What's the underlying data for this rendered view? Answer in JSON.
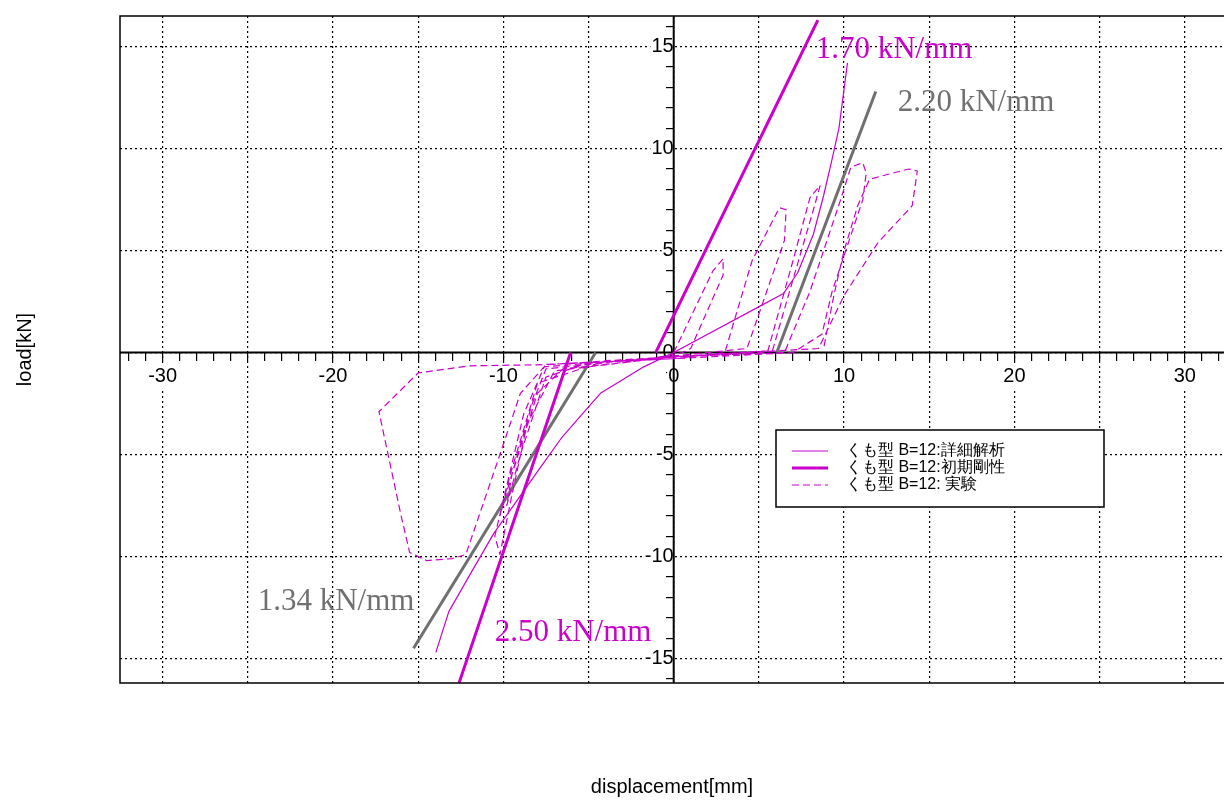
{
  "chart_data": {
    "type": "line",
    "xlabel": "displacement[mm]",
    "ylabel": "load[kN]",
    "xlim": [
      -32.5,
      32.3
    ],
    "ylim": [
      -16.2,
      16.5
    ],
    "xticks": [
      {
        "value": -32,
        "label": null
      },
      {
        "value": -31,
        "label": null
      },
      -30,
      {
        "value": -29,
        "label": null
      },
      {
        "value": -28,
        "label": null
      },
      {
        "value": -27,
        "label": null
      },
      {
        "value": -26,
        "label": null
      },
      {
        "value": -25,
        "label": null
      },
      {
        "value": -24,
        "label": null
      },
      {
        "value": -23,
        "label": null
      },
      {
        "value": -22,
        "label": null
      },
      {
        "value": -21,
        "label": null
      },
      -20,
      {
        "value": -19,
        "label": null
      },
      {
        "value": -18,
        "label": null
      },
      {
        "value": -17,
        "label": null
      },
      {
        "value": -16,
        "label": null
      },
      {
        "value": -15,
        "label": null
      },
      {
        "value": -14,
        "label": null
      },
      {
        "value": -13,
        "label": null
      },
      {
        "value": -12,
        "label": null
      },
      {
        "value": -11,
        "label": null
      },
      -10,
      {
        "value": -9,
        "label": null
      },
      {
        "value": -8,
        "label": null
      },
      {
        "value": -7,
        "label": null
      },
      {
        "value": -6,
        "label": null
      },
      {
        "value": -5,
        "label": null
      },
      {
        "value": -4,
        "label": null
      },
      {
        "value": -3,
        "label": null
      },
      {
        "value": -2,
        "label": null
      },
      {
        "value": -1,
        "label": null
      },
      0,
      {
        "value": 1,
        "label": null
      },
      {
        "value": 2,
        "label": null
      },
      {
        "value": 3,
        "label": null
      },
      {
        "value": 4,
        "label": null
      },
      {
        "value": 5,
        "label": null
      },
      {
        "value": 6,
        "label": null
      },
      {
        "value": 7,
        "label": null
      },
      {
        "value": 8,
        "label": null
      },
      {
        "value": 9,
        "label": null
      },
      10,
      {
        "value": 11,
        "label": null
      },
      {
        "value": 12,
        "label": null
      },
      {
        "value": 13,
        "label": null
      },
      {
        "value": 14,
        "label": null
      },
      {
        "value": 15,
        "label": null
      },
      {
        "value": 16,
        "label": null
      },
      {
        "value": 17,
        "label": null
      },
      {
        "value": 18,
        "label": null
      },
      {
        "value": 19,
        "label": null
      },
      20,
      {
        "value": 21,
        "label": null
      },
      {
        "value": 22,
        "label": null
      },
      {
        "value": 23,
        "label": null
      },
      {
        "value": 24,
        "label": null
      },
      {
        "value": 25,
        "label": null
      },
      {
        "value": 26,
        "label": null
      },
      {
        "value": 27,
        "label": null
      },
      {
        "value": 28,
        "label": null
      },
      {
        "value": 29,
        "label": null
      },
      30,
      {
        "value": 31,
        "label": null
      },
      {
        "value": 32,
        "label": null
      }
    ],
    "yticks": [
      {
        "value": -16,
        "label": null
      },
      -15,
      {
        "value": -14,
        "label": null
      },
      {
        "value": -13,
        "label": null
      },
      {
        "value": -12,
        "label": null
      },
      {
        "value": -11,
        "label": null
      },
      -10,
      {
        "value": -9,
        "label": null
      },
      {
        "value": -8,
        "label": null
      },
      {
        "value": -7,
        "label": null
      },
      {
        "value": -6,
        "label": null
      },
      -5,
      {
        "value": -4,
        "label": null
      },
      {
        "value": -3,
        "label": null
      },
      {
        "value": -2,
        "label": null
      },
      {
        "value": -1,
        "label": null
      },
      0,
      {
        "value": 1,
        "label": null
      },
      {
        "value": 2,
        "label": null
      },
      {
        "value": 3,
        "label": null
      },
      {
        "value": 4,
        "label": null
      },
      5,
      {
        "value": 6,
        "label": null
      },
      {
        "value": 7,
        "label": null
      },
      {
        "value": 8,
        "label": null
      },
      {
        "value": 9,
        "label": null
      },
      10,
      {
        "value": 11,
        "label": null
      },
      {
        "value": 12,
        "label": null
      },
      {
        "value": 13,
        "label": null
      },
      {
        "value": 14,
        "label": null
      },
      15,
      {
        "value": 16,
        "label": null
      }
    ],
    "grid": true,
    "legend": "bottom right",
    "marker": "none",
    "series": [
      {
        "name": "くも型 B=12:詳細解析",
        "color": "#cc00cc",
        "line_style": "solid",
        "x": [
          -13.96,
          -13.2,
          -11.9,
          -10.55,
          -9.15,
          -7.8,
          -6.6,
          -5.0,
          -4.3,
          -1.76,
          0,
          6.45,
          7.27,
          8.2,
          8.8,
          9.3,
          9.7,
          10.2
        ],
        "values": [
          -14.7,
          -12.7,
          -10.8,
          -8.85,
          -7.2,
          -5.6,
          -4.2,
          -2.66,
          -2.0,
          -0.7,
          0,
          2.9,
          3.9,
          5.8,
          7.7,
          9.5,
          11.0,
          14.2
        ]
      },
      {
        "name": "くも型 B=12:初期剛性",
        "color": "#cc00cc",
        "line_style": "solid",
        "x": [
          -1.06,
          8.46,
          null,
          -6.05,
          -12.6
        ],
        "values": [
          0,
          16.3,
          null,
          0,
          -16.2
        ]
      },
      {
        "name": "くも型 B=12: 実験",
        "color": "#cc00cc",
        "line_style": "dashed",
        "x": [
          0,
          2.3,
          2.9,
          2.9,
          1.0,
          0.5,
          -2,
          -6.5,
          -8,
          -9.5,
          -9.8,
          -9,
          -7.5,
          -5,
          0,
          3,
          4.6,
          6.2,
          6.6,
          6.5,
          4.3,
          2,
          -4,
          -7.5,
          -8.3,
          -10.2,
          -9.6,
          -8,
          -4,
          3,
          5.5,
          7,
          8.0,
          8.6,
          8.2,
          6.8,
          5.8,
          0,
          -7.6,
          -8.8,
          -10.5,
          -10.2,
          -9.5,
          -8.6,
          -7,
          0,
          6.5,
          8,
          9.8,
          10.4,
          11.1,
          11.3,
          11.1,
          9.3,
          8.7,
          7,
          0,
          -8,
          -12,
          -15,
          -17.3,
          -16,
          -15.5,
          -14.5,
          -13,
          -12.2,
          -10.2,
          -9,
          -7.5,
          0,
          8.5,
          10,
          12,
          14.0,
          14.3,
          13.8,
          11.5,
          10.8,
          10.0,
          9.4,
          8.8
        ],
        "values": [
          0,
          4.0,
          4.6,
          3.8,
          0.2,
          0,
          -0.4,
          -0.8,
          -2,
          -6,
          -7.5,
          -5,
          -1.2,
          -0.5,
          -0.3,
          0,
          4.5,
          7.1,
          7.0,
          5.5,
          0.2,
          0,
          -0.5,
          -0.8,
          -2.5,
          -8,
          -6,
          -1.5,
          -0.4,
          -0.1,
          0,
          4.5,
          7.6,
          8.2,
          7,
          3,
          0.1,
          -0.2,
          -0.7,
          -3,
          -9,
          -9.9,
          -7,
          -3.5,
          -0.9,
          -0.2,
          0,
          3,
          7.5,
          9.1,
          9.3,
          8.8,
          7.5,
          3,
          0.9,
          0,
          -0.3,
          -0.6,
          -0.65,
          -1.0,
          -2.9,
          -8,
          -9.8,
          -10.2,
          -10.1,
          -9.9,
          -5,
          -2,
          -0.6,
          -0.2,
          0.2,
          2.8,
          5.4,
          7.2,
          8.9,
          9.0,
          8.5,
          7.2,
          5,
          2.8,
          0.2
        ]
      },
      {
        "color": "#707070",
        "line_style": "solid",
        "x": [
          6.05,
          11.86,
          null,
          -4.58,
          -15.27
        ],
        "values": [
          0,
          12.8,
          null,
          0,
          -14.5
        ]
      }
    ],
    "annotations": [
      "1.70 kN/mm",
      "2.20 kN/mm",
      "1.34 kN/mm",
      "2.50 kN/mm"
    ]
  }
}
